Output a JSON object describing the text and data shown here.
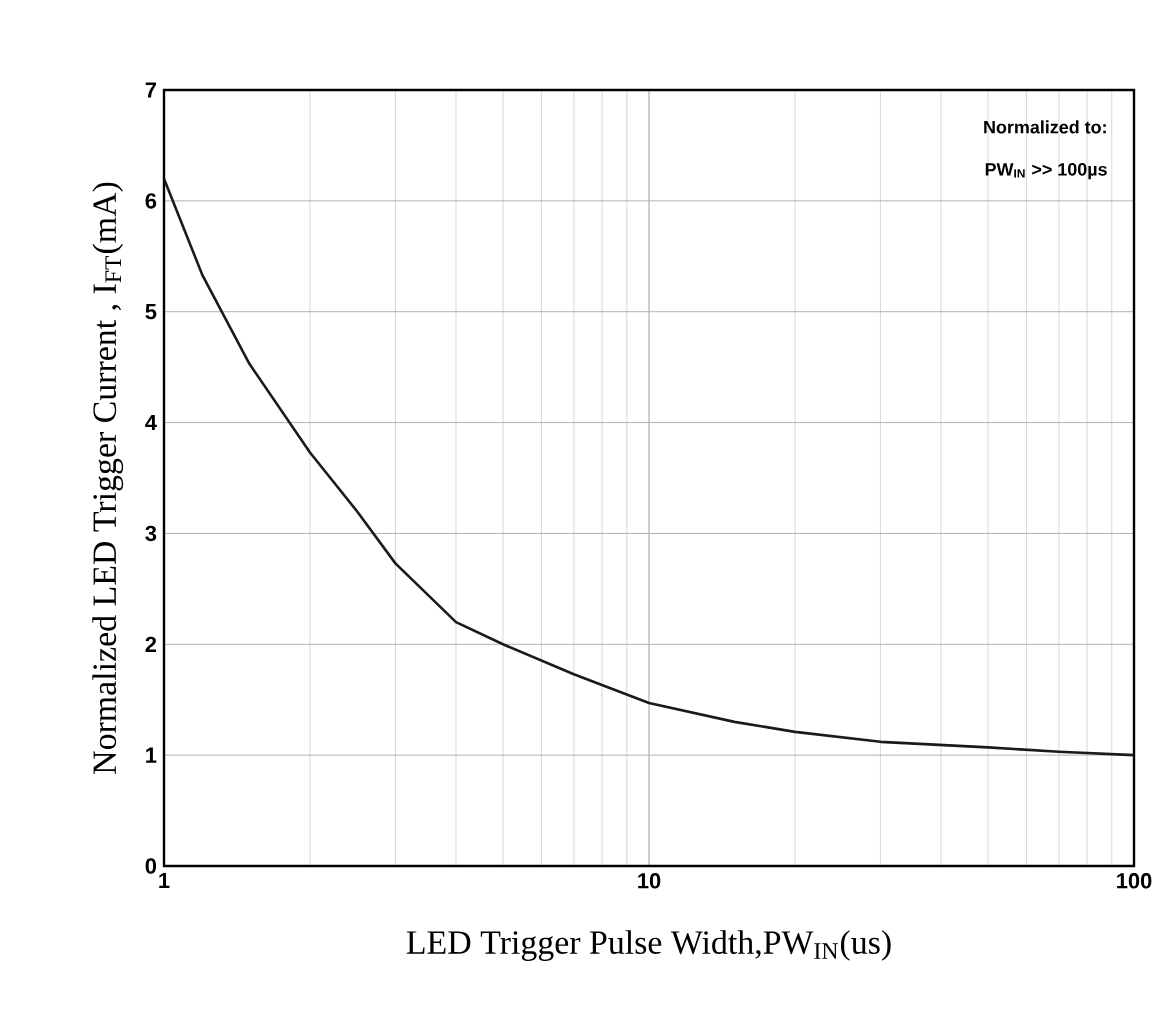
{
  "chart_data": {
    "type": "line",
    "xlabel": "LED Trigger Pulse Width,PW$_{IN}$(us)",
    "ylabel": "Normalized LED Trigger Current , I$_{FT}$(mA)",
    "annotations": [
      "Normalized to:",
      "PW$_{IN}$ >> 100µs"
    ],
    "x": [
      1,
      1.2,
      1.5,
      2,
      2.5,
      3,
      4,
      5,
      7,
      10,
      15,
      20,
      30,
      50,
      70,
      100
    ],
    "series": [
      {
        "color": "#1a1a1a",
        "values": [
          6.2,
          5.33,
          4.53,
          3.73,
          3.2,
          2.73,
          2.2,
          2.0,
          1.73,
          1.47,
          1.3,
          1.21,
          1.12,
          1.07,
          1.03,
          1.0
        ]
      }
    ],
    "log": "x",
    "xlim": [
      1,
      100
    ],
    "xticks": [
      1,
      10,
      100
    ],
    "ylim": [
      0,
      7
    ],
    "yticks": [
      0,
      1,
      2,
      3,
      4,
      5,
      6,
      7
    ],
    "grid": true,
    "marker": "none",
    "line_style": "solid"
  }
}
